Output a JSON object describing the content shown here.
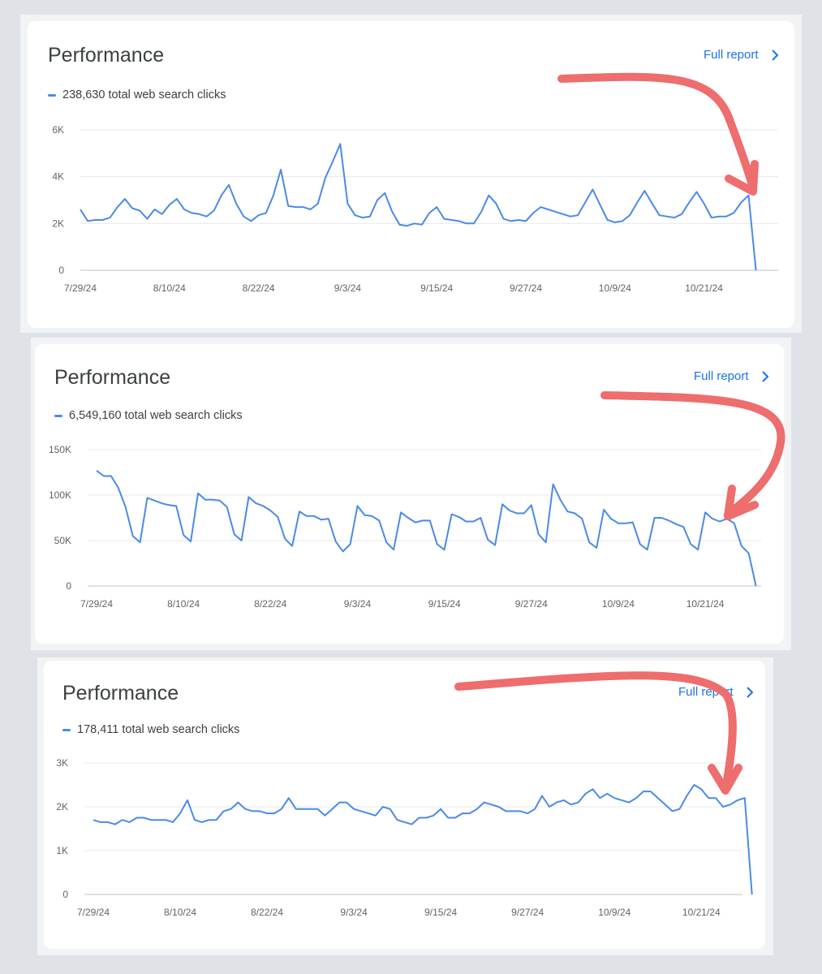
{
  "panels": [
    {
      "title": "Performance",
      "full_report": "Full report",
      "legend": "238,630 total web search clicks"
    },
    {
      "title": "Performance",
      "full_report": "Full report",
      "legend": "6,549,160 total web search clicks"
    },
    {
      "title": "Performance",
      "full_report": "Full report",
      "legend": "178,411 total web search clicks"
    }
  ],
  "colors": {
    "line": "#4a8ae8",
    "arrow": "#ee6d6d",
    "grid": "#e8eaed",
    "axis": "#bdc1c6"
  },
  "icons": {
    "full_report": "chevron-right-icon"
  },
  "chart_data": [
    {
      "type": "line",
      "x_ticks": [
        "7/29/24",
        "8/10/24",
        "8/22/24",
        "9/3/24",
        "9/15/24",
        "9/27/24",
        "10/9/24",
        "10/21/24"
      ],
      "y_ticks": [
        "0",
        "2K",
        "4K",
        "6K"
      ],
      "ylim": [
        0,
        6000
      ],
      "grid": true,
      "series": [
        {
          "values": [
            2600,
            2100,
            2150,
            2150,
            2250,
            2700,
            3050,
            2650,
            2550,
            2200,
            2600,
            2400,
            2800,
            3050,
            2600,
            2450,
            2400,
            2300,
            2550,
            3200,
            3650,
            2850,
            2300,
            2100,
            2350,
            2450,
            3200,
            4300,
            2750,
            2700,
            2700,
            2600,
            2850,
            3950,
            4650,
            5400,
            2850,
            2350,
            2250,
            2300,
            3000,
            3300,
            2500,
            1950,
            1900,
            2000,
            1950,
            2450,
            2700,
            2200,
            2150,
            2100,
            2000,
            2000,
            2500,
            3200,
            2850,
            2200,
            2100,
            2150,
            2100,
            2450,
            2700,
            2600,
            2500,
            2400,
            2300,
            2350,
            2900,
            3450,
            2800,
            2150,
            2050,
            2100,
            2350,
            2900,
            3400,
            2850,
            2350,
            2300,
            2250,
            2400,
            2900,
            3350,
            2850,
            2250,
            2300,
            2300,
            2450,
            2900,
            3200,
            0
          ]
        }
      ]
    },
    {
      "type": "line",
      "x_ticks": [
        "7/29/24",
        "8/10/24",
        "8/22/24",
        "9/3/24",
        "9/15/24",
        "9/27/24",
        "10/9/24",
        "10/21/24"
      ],
      "y_ticks": [
        "0",
        "50K",
        "100K",
        "150K"
      ],
      "ylim": [
        0,
        150000
      ],
      "grid": true,
      "series": [
        {
          "values": [
            127000,
            121000,
            121000,
            108000,
            87000,
            55000,
            48000,
            97000,
            94000,
            91000,
            89000,
            88000,
            56000,
            49000,
            102000,
            95000,
            95000,
            94000,
            87000,
            57000,
            50000,
            98000,
            91000,
            88000,
            83000,
            76000,
            52000,
            44000,
            82000,
            77000,
            77000,
            73000,
            74000,
            49000,
            38000,
            46000,
            88000,
            78000,
            77000,
            72000,
            48000,
            40000,
            81000,
            75000,
            70000,
            72000,
            72000,
            46000,
            40000,
            79000,
            76000,
            71000,
            71000,
            75000,
            51000,
            45000,
            90000,
            83000,
            80000,
            80000,
            89000,
            57000,
            48000,
            112000,
            95000,
            82000,
            80000,
            74000,
            48000,
            42000,
            84000,
            74000,
            69000,
            69000,
            70000,
            46000,
            40000,
            75000,
            75000,
            72000,
            68000,
            65000,
            46000,
            40000,
            81000,
            74000,
            71000,
            74000,
            69000,
            44000,
            36000,
            0
          ]
        }
      ]
    },
    {
      "type": "line",
      "x_ticks": [
        "7/29/24",
        "8/10/24",
        "8/22/24",
        "9/3/24",
        "9/15/24",
        "9/27/24",
        "10/9/24",
        "10/21/24"
      ],
      "y_ticks": [
        "0",
        "1K",
        "2K",
        "3K"
      ],
      "ylim": [
        0,
        3000
      ],
      "grid": true,
      "series": [
        {
          "values": [
            1700,
            1650,
            1650,
            1600,
            1700,
            1650,
            1750,
            1750,
            1700,
            1700,
            1700,
            1650,
            1850,
            2150,
            1700,
            1650,
            1700,
            1700,
            1900,
            1950,
            2100,
            1950,
            1900,
            1900,
            1850,
            1850,
            1950,
            2200,
            1950,
            1950,
            1950,
            1950,
            1800,
            1950,
            2100,
            2100,
            1950,
            1900,
            1850,
            1800,
            2000,
            1950,
            1700,
            1650,
            1600,
            1750,
            1750,
            1800,
            1950,
            1750,
            1750,
            1850,
            1850,
            1950,
            2100,
            2050,
            2000,
            1900,
            1900,
            1900,
            1850,
            1950,
            2250,
            2000,
            2100,
            2150,
            2050,
            2100,
            2300,
            2400,
            2200,
            2300,
            2200,
            2150,
            2100,
            2200,
            2350,
            2350,
            2200,
            2050,
            1900,
            1950,
            2250,
            2500,
            2400,
            2200,
            2200,
            2000,
            2050,
            2150,
            2200,
            0
          ]
        }
      ]
    }
  ]
}
